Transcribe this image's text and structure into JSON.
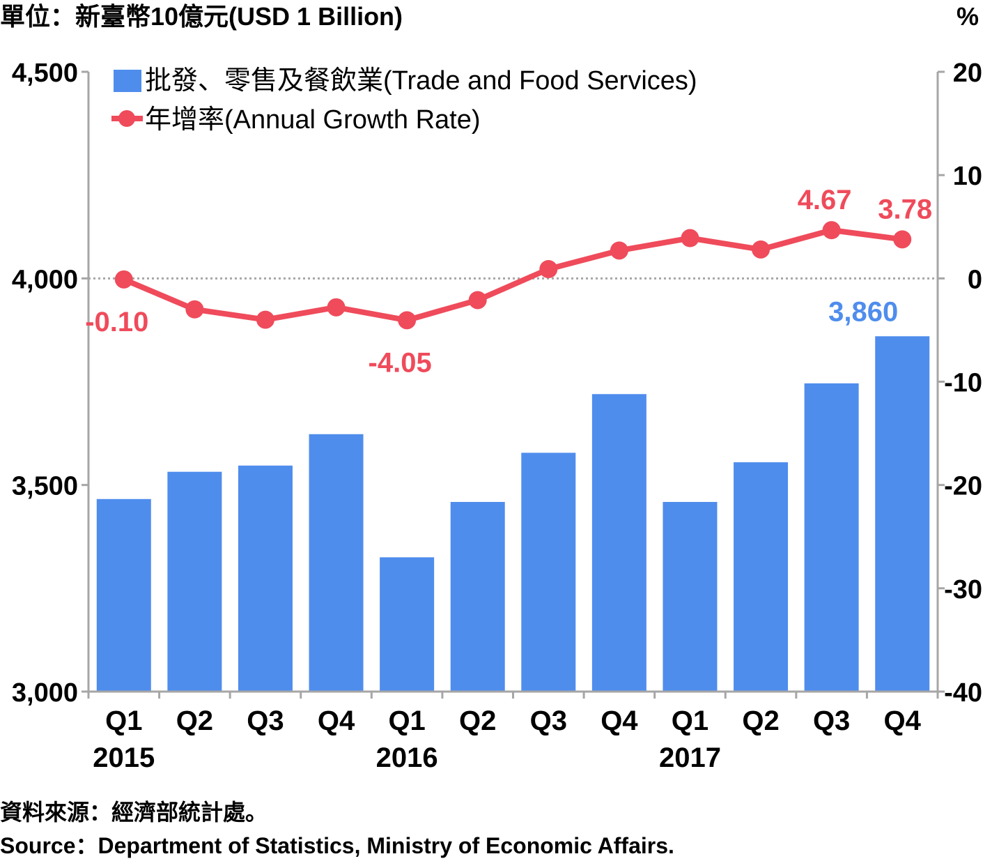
{
  "colors": {
    "bar": "#4f8ded",
    "line": "#ef4b5b",
    "axis": "#a6a6a6",
    "text": "#000000",
    "zero_line": "#a6a6a6"
  },
  "chart_data": {
    "type": "bar+line",
    "unit_label": "單位：新臺幣10億元(USD 1 Billion)",
    "right_unit_label": "%",
    "categories": [
      "Q1",
      "Q2",
      "Q3",
      "Q4",
      "Q1",
      "Q2",
      "Q3",
      "Q4",
      "Q1",
      "Q2",
      "Q3",
      "Q4"
    ],
    "years": [
      {
        "label": "2015",
        "category_index": 0
      },
      {
        "label": "2016",
        "category_index": 4
      },
      {
        "label": "2017",
        "category_index": 8
      }
    ],
    "series": [
      {
        "name": "批發、零售及餐飲業(Trade and Food Services)",
        "type": "bar",
        "axis": "left",
        "values": [
          3466,
          3532,
          3547,
          3623,
          3325,
          3459,
          3578,
          3720,
          3459,
          3555,
          3746,
          3860
        ]
      },
      {
        "name": "年增率(Annual Growth Rate)",
        "type": "line",
        "axis": "right",
        "values": [
          -0.1,
          -3.0,
          -4.0,
          -2.8,
          -4.05,
          -2.1,
          0.9,
          2.7,
          3.9,
          2.8,
          4.67,
          3.78
        ]
      }
    ],
    "y_left": {
      "min": 3000,
      "max": 4500,
      "ticks": [
        3000,
        3500,
        4000,
        4500
      ],
      "tick_labels": [
        "3,000",
        "3,500",
        "4,000",
        "4,500"
      ]
    },
    "y_right": {
      "min": -40,
      "max": 20,
      "ticks": [
        -40,
        -30,
        -20,
        -10,
        0,
        10,
        20
      ],
      "tick_labels": [
        "-40",
        "-30",
        "-20",
        "-10",
        "0",
        "10",
        "20"
      ]
    },
    "bar_labels": [
      {
        "index": 11,
        "text": "3,860"
      }
    ],
    "line_labels": [
      {
        "index": 0,
        "text": "-0.10",
        "position": "below"
      },
      {
        "index": 4,
        "text": "-4.05",
        "position": "below"
      },
      {
        "index": 10,
        "text": "4.67",
        "position": "above"
      },
      {
        "index": 11,
        "text": "3.78",
        "position": "above"
      }
    ],
    "zero_reference_line": true,
    "legend_placement": "top-left"
  },
  "footer": {
    "source_zh": "資料來源：經濟部統計處。",
    "source_en": "Source：Department of Statistics, Ministry of Economic Affairs."
  }
}
